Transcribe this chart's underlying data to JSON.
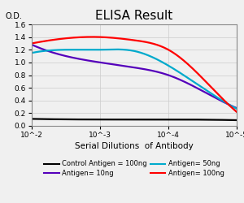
{
  "title": "ELISA Result",
  "ylabel": "O.D.",
  "xlabel": "Serial Dilutions  of Antibody",
  "xlim": [
    0,
    3
  ],
  "ylim": [
    0,
    1.6
  ],
  "yticks": [
    0,
    0.2,
    0.4,
    0.6,
    0.8,
    1.0,
    1.2,
    1.4,
    1.6
  ],
  "xtick_positions": [
    0,
    1,
    2,
    3
  ],
  "xtick_labels": [
    "10^-2",
    "10^-3",
    "10^-4",
    "10^-5"
  ],
  "series": [
    {
      "label": "Control Antigen = 100ng",
      "color": "black",
      "x": [
        0,
        1,
        2,
        3
      ],
      "y": [
        0.11,
        0.1,
        0.1,
        0.09
      ]
    },
    {
      "label": "Antigen= 10ng",
      "color": "#5500bb",
      "x": [
        0,
        0.5,
        1.0,
        1.5,
        2.0,
        2.5,
        3.0
      ],
      "y": [
        1.28,
        1.1,
        1.0,
        0.92,
        0.8,
        0.55,
        0.28
      ]
    },
    {
      "label": "Antigen= 50ng",
      "color": "#00aacc",
      "x": [
        0,
        0.5,
        1.0,
        1.5,
        2.0,
        2.5,
        3.0
      ],
      "y": [
        1.15,
        1.2,
        1.2,
        1.18,
        0.95,
        0.6,
        0.27
      ]
    },
    {
      "label": "Antigen= 100ng",
      "color": "red",
      "x": [
        0,
        0.5,
        1.0,
        1.5,
        2.0,
        2.5,
        3.0
      ],
      "y": [
        1.3,
        1.38,
        1.4,
        1.35,
        1.2,
        0.75,
        0.22
      ]
    }
  ],
  "background_color": "#f0f0f0",
  "grid_color": "#cccccc",
  "title_fontsize": 11,
  "axis_fontsize": 7,
  "tick_fontsize": 6.5,
  "legend_fontsize": 6,
  "linewidth": 1.6
}
